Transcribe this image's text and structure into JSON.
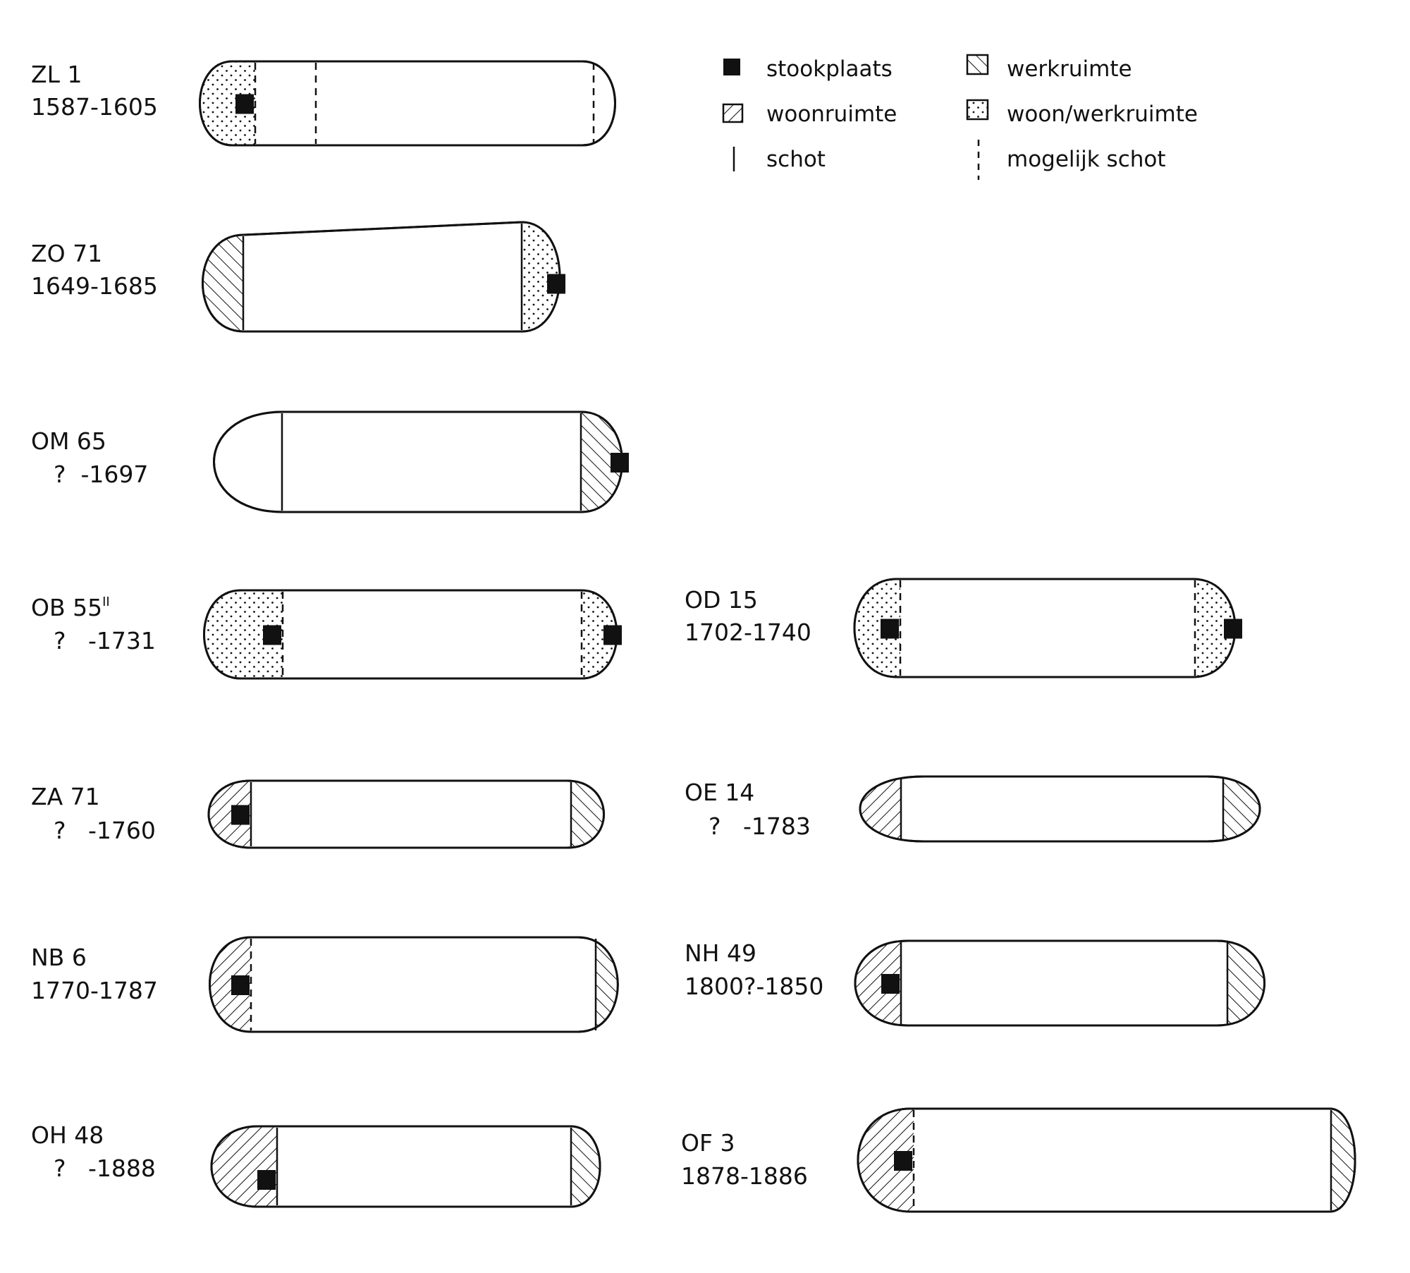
{
  "legend": {
    "items": [
      {
        "key": "stook",
        "label": "stookplaats"
      },
      {
        "key": "woon",
        "label": "woonruimte"
      },
      {
        "key": "schot",
        "label": "schot"
      },
      {
        "key": "werk",
        "label": "werkruimte"
      },
      {
        "key": "woonwerk",
        "label": "woon/werkruimte"
      },
      {
        "key": "mogelijk",
        "label": "mogelijk schot"
      }
    ]
  },
  "boats": [
    {
      "name": "ZL 1",
      "sup": "",
      "date": "1587-1605",
      "left": {
        "fill": "woonwerk",
        "div": "dashed",
        "stove": true
      },
      "right": {
        "fill": "none",
        "div": "dashed",
        "stove": false
      },
      "extra_divider": "dashed"
    },
    {
      "name": "ZO 71",
      "sup": "",
      "date": "1649-1685",
      "left": {
        "fill": "werk",
        "div": "solid",
        "stove": false
      },
      "right": {
        "fill": "woonwerk",
        "div": "solid",
        "stove": true
      }
    },
    {
      "name": "OM 65",
      "sup": "",
      "date": "?  -1697",
      "left": {
        "fill": "none",
        "div": "solid",
        "stove": false
      },
      "right": {
        "fill": "werk",
        "div": "solid",
        "stove": true
      }
    },
    {
      "name": "OB 55",
      "sup": "II",
      "date": "?   -1731",
      "left": {
        "fill": "woonwerk",
        "div": "dashed",
        "stove": true
      },
      "right": {
        "fill": "woonwerk",
        "div": "dashed",
        "stove": true
      }
    },
    {
      "name": "OD 15",
      "sup": "",
      "date": "1702-1740",
      "left": {
        "fill": "woonwerk",
        "div": "dashed",
        "stove": true
      },
      "right": {
        "fill": "woonwerk",
        "div": "dashed",
        "stove": true
      }
    },
    {
      "name": "ZA 71",
      "sup": "",
      "date": "?   -1760",
      "left": {
        "fill": "woon",
        "div": "solid",
        "stove": true
      },
      "right": {
        "fill": "werk",
        "div": "solid",
        "stove": false
      }
    },
    {
      "name": "OE 14",
      "sup": "",
      "date": "?   -1783",
      "left": {
        "fill": "woon",
        "div": "solid",
        "stove": false
      },
      "right": {
        "fill": "werk",
        "div": "solid",
        "stove": false
      }
    },
    {
      "name": "NB 6",
      "sup": "",
      "date": "1770-1787",
      "left": {
        "fill": "woon",
        "div": "dashed",
        "stove": true
      },
      "right": {
        "fill": "werk",
        "div": "solid",
        "stove": false
      }
    },
    {
      "name": "NH 49",
      "sup": "",
      "date": "1800?-1850",
      "left": {
        "fill": "woon",
        "div": "solid",
        "stove": true
      },
      "right": {
        "fill": "werk",
        "div": "solid",
        "stove": false
      }
    },
    {
      "name": "OH 48",
      "sup": "",
      "date": "?   -1888",
      "left": {
        "fill": "woon",
        "div": "solid",
        "stove": true
      },
      "right": {
        "fill": "werk",
        "div": "solid",
        "stove": false
      }
    },
    {
      "name": "OF 3",
      "sup": "",
      "date": "1878-1886",
      "left": {
        "fill": "woon",
        "div": "dashed",
        "stove": true
      },
      "right": {
        "fill": "werk",
        "div": "solid",
        "stove": false
      }
    }
  ]
}
